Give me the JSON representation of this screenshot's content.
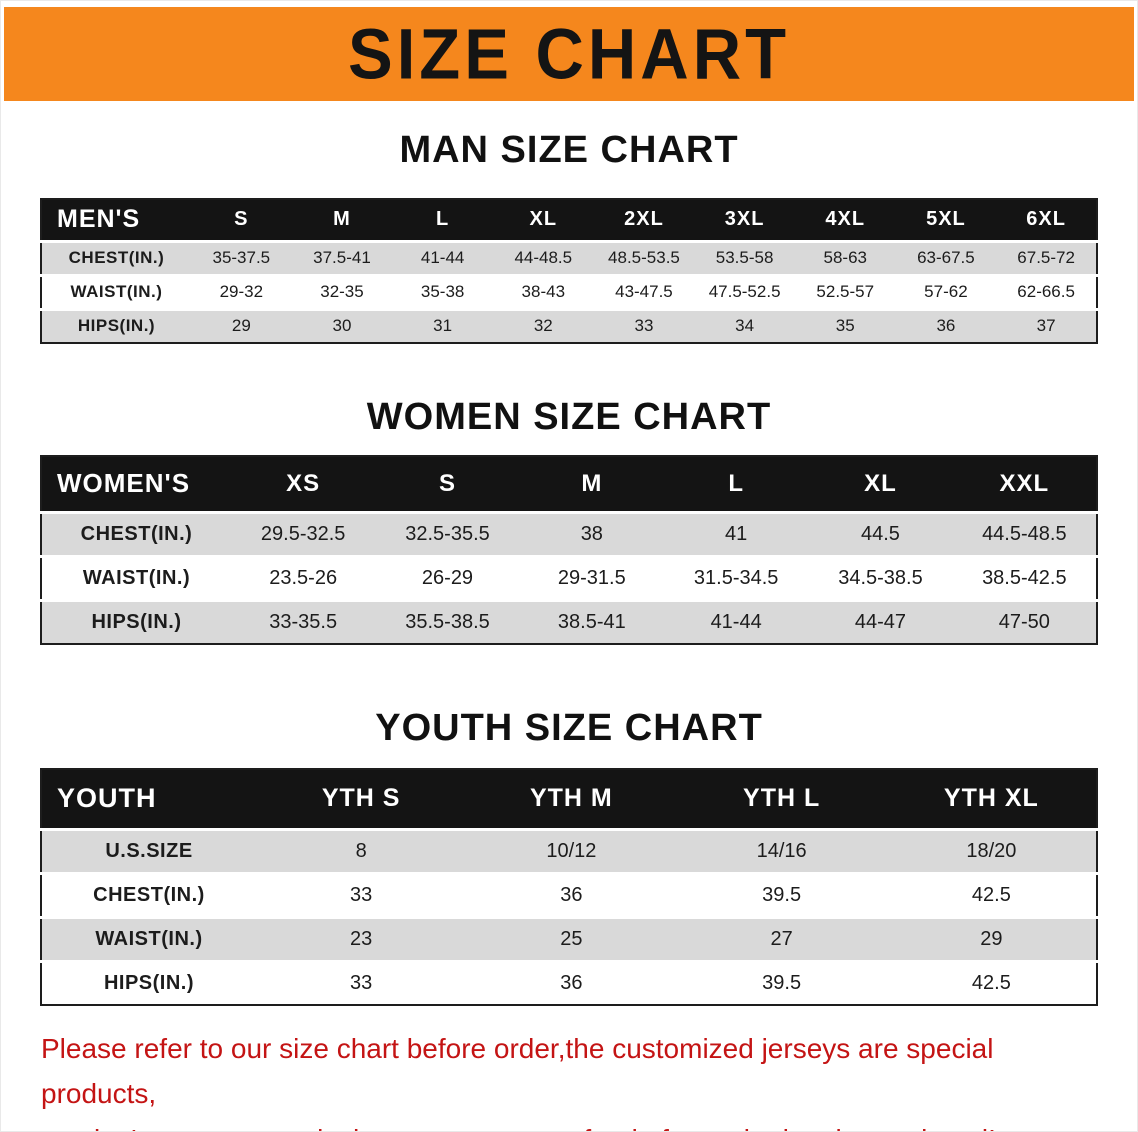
{
  "banner": {
    "title": "SIZE CHART"
  },
  "colors": {
    "banner_bg": "#f5871d",
    "header_bg": "#141414",
    "row_alt": "#d9d9d9",
    "footer_text": "#c41414"
  },
  "sections": [
    {
      "heading": "MAN SIZE CHART",
      "table": {
        "header": [
          "MEN'S",
          "S",
          "M",
          "L",
          "XL",
          "2XL",
          "3XL",
          "4XL",
          "5XL",
          "6XL"
        ],
        "rows": [
          {
            "label": "CHEST(IN.)",
            "values": [
              "35-37.5",
              "37.5-41",
              "41-44",
              "44-48.5",
              "48.5-53.5",
              "53.5-58",
              "58-63",
              "63-67.5",
              "67.5-72"
            ]
          },
          {
            "label": "WAIST(IN.)",
            "values": [
              "29-32",
              "32-35",
              "35-38",
              "38-43",
              "43-47.5",
              "47.5-52.5",
              "52.5-57",
              "57-62",
              "62-66.5"
            ]
          },
          {
            "label": "HIPS(IN.)",
            "values": [
              "29",
              "30",
              "31",
              "32",
              "33",
              "34",
              "35",
              "36",
              "37"
            ]
          }
        ]
      }
    },
    {
      "heading": "WOMEN SIZE CHART",
      "table": {
        "header": [
          "WOMEN'S",
          "XS",
          "S",
          "M",
          "L",
          "XL",
          "XXL"
        ],
        "rows": [
          {
            "label": "CHEST(IN.)",
            "values": [
              "29.5-32.5",
              "32.5-35.5",
              "38",
              "41",
              "44.5",
              "44.5-48.5"
            ]
          },
          {
            "label": "WAIST(IN.)",
            "values": [
              "23.5-26",
              "26-29",
              "29-31.5",
              "31.5-34.5",
              "34.5-38.5",
              "38.5-42.5"
            ]
          },
          {
            "label": "HIPS(IN.)",
            "values": [
              "33-35.5",
              "35.5-38.5",
              "38.5-41",
              "41-44",
              "44-47",
              "47-50"
            ]
          }
        ]
      }
    },
    {
      "heading": "YOUTH SIZE CHART",
      "table": {
        "header": [
          "YOUTH",
          "YTH S",
          "YTH M",
          "YTH L",
          "YTH XL"
        ],
        "rows": [
          {
            "label": "U.S.SIZE",
            "values": [
              "8",
              "10/12",
              "14/16",
              "18/20"
            ]
          },
          {
            "label": "CHEST(IN.)",
            "values": [
              "33",
              "36",
              "39.5",
              "42.5"
            ]
          },
          {
            "label": "WAIST(IN.)",
            "values": [
              "23",
              "25",
              "27",
              "29"
            ]
          },
          {
            "label": "HIPS(IN.)",
            "values": [
              "33",
              "36",
              "39.5",
              "42.5"
            ]
          }
        ]
      }
    }
  ],
  "footer": {
    "lines": [
      "Please refer to our size chart before order,the customized jerseys are special products,",
      "we don't accept cancel, change, teturn or refund after order has been placed!"
    ]
  }
}
